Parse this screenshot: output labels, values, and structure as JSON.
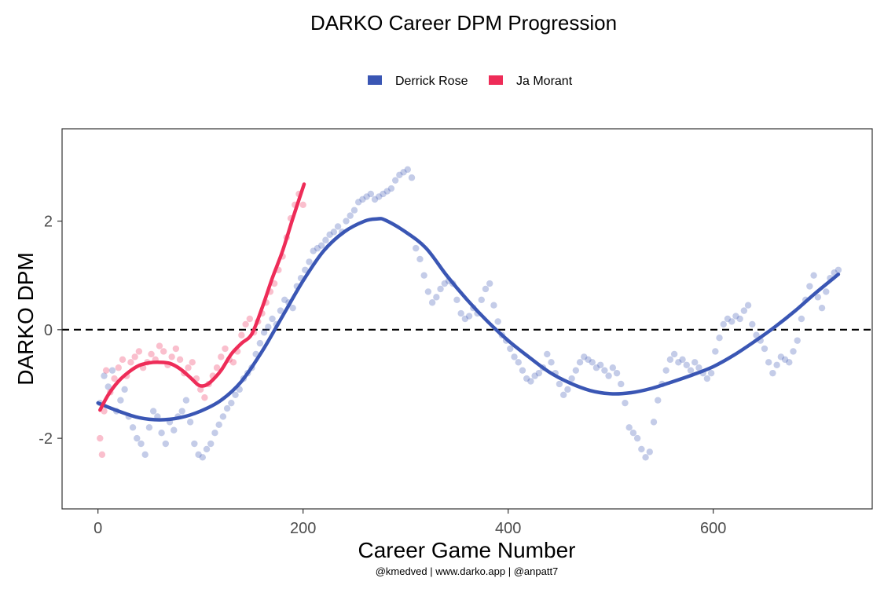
{
  "chart_data": {
    "type": "scatter",
    "title": "DARKO Career DPM Progression",
    "xlabel": "Career Game Number",
    "ylabel": "DARKO DPM",
    "caption": "@kmedved | www.darko.app | @anpatt7",
    "xlim": [
      -35,
      755
    ],
    "ylim": [
      -3.3,
      3.7
    ],
    "x_ticks": [
      0,
      200,
      400,
      600
    ],
    "x_tick_labels": [
      "0",
      "200",
      "400",
      "600"
    ],
    "y_ticks": [
      -2,
      0,
      2
    ],
    "y_tick_labels": [
      "-2",
      "0",
      "2"
    ],
    "reference_line": {
      "y": 0,
      "style": "dashed"
    },
    "legend": {
      "position": "top"
    },
    "grid": false,
    "series": [
      {
        "name": "Derrick Rose",
        "color": "#3a56b4",
        "points": [
          [
            2,
            -1.35
          ],
          [
            6,
            -0.85
          ],
          [
            10,
            -1.05
          ],
          [
            14,
            -0.75
          ],
          [
            18,
            -1.5
          ],
          [
            22,
            -1.3
          ],
          [
            26,
            -1.1
          ],
          [
            30,
            -1.6
          ],
          [
            34,
            -1.8
          ],
          [
            38,
            -2.0
          ],
          [
            42,
            -2.1
          ],
          [
            46,
            -2.3
          ],
          [
            50,
            -1.8
          ],
          [
            54,
            -1.5
          ],
          [
            58,
            -1.6
          ],
          [
            62,
            -1.9
          ],
          [
            66,
            -2.1
          ],
          [
            70,
            -1.7
          ],
          [
            74,
            -1.85
          ],
          [
            78,
            -1.6
          ],
          [
            82,
            -1.5
          ],
          [
            86,
            -1.3
          ],
          [
            90,
            -1.7
          ],
          [
            94,
            -2.1
          ],
          [
            98,
            -2.3
          ],
          [
            102,
            -2.35
          ],
          [
            106,
            -2.2
          ],
          [
            110,
            -2.1
          ],
          [
            114,
            -1.9
          ],
          [
            118,
            -1.75
          ],
          [
            122,
            -1.6
          ],
          [
            126,
            -1.45
          ],
          [
            130,
            -1.35
          ],
          [
            134,
            -1.2
          ],
          [
            138,
            -1.1
          ],
          [
            142,
            -0.9
          ],
          [
            146,
            -0.8
          ],
          [
            150,
            -0.7
          ],
          [
            154,
            -0.45
          ],
          [
            158,
            -0.25
          ],
          [
            162,
            -0.05
          ],
          [
            166,
            0.05
          ],
          [
            170,
            0.2
          ],
          [
            174,
            0.1
          ],
          [
            178,
            0.35
          ],
          [
            182,
            0.55
          ],
          [
            186,
            0.5
          ],
          [
            190,
            0.4
          ],
          [
            194,
            0.8
          ],
          [
            198,
            0.95
          ],
          [
            202,
            1.1
          ],
          [
            206,
            1.25
          ],
          [
            210,
            1.45
          ],
          [
            214,
            1.5
          ],
          [
            218,
            1.55
          ],
          [
            222,
            1.65
          ],
          [
            226,
            1.75
          ],
          [
            230,
            1.8
          ],
          [
            234,
            1.9
          ],
          [
            238,
            1.8
          ],
          [
            242,
            2.0
          ],
          [
            246,
            2.1
          ],
          [
            250,
            2.2
          ],
          [
            254,
            2.35
          ],
          [
            258,
            2.4
          ],
          [
            262,
            2.45
          ],
          [
            266,
            2.5
          ],
          [
            270,
            2.4
          ],
          [
            274,
            2.45
          ],
          [
            278,
            2.5
          ],
          [
            282,
            2.55
          ],
          [
            286,
            2.6
          ],
          [
            290,
            2.75
          ],
          [
            294,
            2.85
          ],
          [
            298,
            2.9
          ],
          [
            302,
            2.95
          ],
          [
            306,
            2.8
          ],
          [
            310,
            1.5
          ],
          [
            314,
            1.3
          ],
          [
            318,
            1.0
          ],
          [
            322,
            0.7
          ],
          [
            326,
            0.5
          ],
          [
            330,
            0.6
          ],
          [
            334,
            0.75
          ],
          [
            338,
            0.85
          ],
          [
            342,
            0.9
          ],
          [
            346,
            0.85
          ],
          [
            350,
            0.55
          ],
          [
            354,
            0.3
          ],
          [
            358,
            0.2
          ],
          [
            362,
            0.25
          ],
          [
            366,
            0.4
          ],
          [
            370,
            0.3
          ],
          [
            374,
            0.55
          ],
          [
            378,
            0.75
          ],
          [
            382,
            0.85
          ],
          [
            386,
            0.45
          ],
          [
            390,
            0.15
          ],
          [
            394,
            -0.1
          ],
          [
            398,
            -0.2
          ],
          [
            402,
            -0.35
          ],
          [
            406,
            -0.5
          ],
          [
            410,
            -0.6
          ],
          [
            414,
            -0.75
          ],
          [
            418,
            -0.9
          ],
          [
            422,
            -0.95
          ],
          [
            426,
            -0.85
          ],
          [
            430,
            -0.8
          ],
          [
            434,
            -0.7
          ],
          [
            438,
            -0.45
          ],
          [
            442,
            -0.6
          ],
          [
            446,
            -0.8
          ],
          [
            450,
            -1.0
          ],
          [
            454,
            -1.2
          ],
          [
            458,
            -1.1
          ],
          [
            462,
            -0.9
          ],
          [
            466,
            -0.75
          ],
          [
            470,
            -0.6
          ],
          [
            474,
            -0.5
          ],
          [
            478,
            -0.55
          ],
          [
            482,
            -0.6
          ],
          [
            486,
            -0.7
          ],
          [
            490,
            -0.65
          ],
          [
            494,
            -0.75
          ],
          [
            498,
            -0.85
          ],
          [
            502,
            -0.7
          ],
          [
            506,
            -0.8
          ],
          [
            510,
            -1.0
          ],
          [
            514,
            -1.35
          ],
          [
            518,
            -1.8
          ],
          [
            522,
            -1.9
          ],
          [
            526,
            -2.0
          ],
          [
            530,
            -2.2
          ],
          [
            534,
            -2.35
          ],
          [
            538,
            -2.25
          ],
          [
            542,
            -1.7
          ],
          [
            546,
            -1.3
          ],
          [
            550,
            -1.0
          ],
          [
            554,
            -0.75
          ],
          [
            558,
            -0.55
          ],
          [
            562,
            -0.45
          ],
          [
            566,
            -0.6
          ],
          [
            570,
            -0.55
          ],
          [
            574,
            -0.65
          ],
          [
            578,
            -0.75
          ],
          [
            582,
            -0.6
          ],
          [
            586,
            -0.7
          ],
          [
            590,
            -0.8
          ],
          [
            594,
            -0.9
          ],
          [
            598,
            -0.8
          ],
          [
            602,
            -0.4
          ],
          [
            606,
            -0.15
          ],
          [
            610,
            0.1
          ],
          [
            614,
            0.2
          ],
          [
            618,
            0.15
          ],
          [
            622,
            0.25
          ],
          [
            626,
            0.2
          ],
          [
            630,
            0.35
          ],
          [
            634,
            0.45
          ],
          [
            638,
            0.1
          ],
          [
            642,
            -0.1
          ],
          [
            646,
            -0.2
          ],
          [
            650,
            -0.35
          ],
          [
            654,
            -0.6
          ],
          [
            658,
            -0.8
          ],
          [
            662,
            -0.65
          ],
          [
            666,
            -0.5
          ],
          [
            670,
            -0.55
          ],
          [
            674,
            -0.6
          ],
          [
            678,
            -0.4
          ],
          [
            682,
            -0.2
          ],
          [
            686,
            0.2
          ],
          [
            690,
            0.55
          ],
          [
            694,
            0.8
          ],
          [
            698,
            1.0
          ],
          [
            702,
            0.6
          ],
          [
            706,
            0.4
          ],
          [
            710,
            0.7
          ],
          [
            714,
            0.95
          ],
          [
            718,
            1.05
          ],
          [
            722,
            1.1
          ]
        ],
        "smooth": [
          [
            0,
            -1.35
          ],
          [
            20,
            -1.5
          ],
          [
            40,
            -1.62
          ],
          [
            60,
            -1.66
          ],
          [
            80,
            -1.62
          ],
          [
            100,
            -1.5
          ],
          [
            120,
            -1.3
          ],
          [
            140,
            -0.95
          ],
          [
            160,
            -0.4
          ],
          [
            180,
            0.25
          ],
          [
            200,
            0.9
          ],
          [
            220,
            1.45
          ],
          [
            240,
            1.8
          ],
          [
            260,
            2.0
          ],
          [
            272,
            2.04
          ],
          [
            280,
            2.02
          ],
          [
            300,
            1.8
          ],
          [
            320,
            1.5
          ],
          [
            340,
            1.0
          ],
          [
            360,
            0.55
          ],
          [
            380,
            0.15
          ],
          [
            400,
            -0.2
          ],
          [
            420,
            -0.5
          ],
          [
            440,
            -0.78
          ],
          [
            460,
            -0.98
          ],
          [
            480,
            -1.12
          ],
          [
            500,
            -1.18
          ],
          [
            520,
            -1.16
          ],
          [
            540,
            -1.08
          ],
          [
            560,
            -0.96
          ],
          [
            580,
            -0.83
          ],
          [
            600,
            -0.68
          ],
          [
            620,
            -0.47
          ],
          [
            640,
            -0.22
          ],
          [
            660,
            0.05
          ],
          [
            680,
            0.35
          ],
          [
            700,
            0.68
          ],
          [
            722,
            1.02
          ]
        ]
      },
      {
        "name": "Ja Morant",
        "color": "#ee2c58",
        "points": [
          [
            2,
            -2.0
          ],
          [
            4,
            -2.3
          ],
          [
            6,
            -1.5
          ],
          [
            8,
            -0.75
          ],
          [
            12,
            -1.15
          ],
          [
            16,
            -0.9
          ],
          [
            20,
            -0.7
          ],
          [
            24,
            -0.55
          ],
          [
            28,
            -0.85
          ],
          [
            32,
            -0.6
          ],
          [
            36,
            -0.5
          ],
          [
            40,
            -0.4
          ],
          [
            44,
            -0.7
          ],
          [
            48,
            -0.6
          ],
          [
            52,
            -0.45
          ],
          [
            56,
            -0.55
          ],
          [
            60,
            -0.3
          ],
          [
            64,
            -0.4
          ],
          [
            68,
            -0.65
          ],
          [
            72,
            -0.5
          ],
          [
            76,
            -0.35
          ],
          [
            80,
            -0.55
          ],
          [
            84,
            -0.8
          ],
          [
            88,
            -0.7
          ],
          [
            92,
            -0.6
          ],
          [
            96,
            -0.9
          ],
          [
            100,
            -1.1
          ],
          [
            104,
            -1.25
          ],
          [
            108,
            -1.0
          ],
          [
            112,
            -0.85
          ],
          [
            116,
            -0.7
          ],
          [
            120,
            -0.5
          ],
          [
            124,
            -0.35
          ],
          [
            128,
            -0.55
          ],
          [
            132,
            -0.6
          ],
          [
            136,
            -0.4
          ],
          [
            140,
            -0.1
          ],
          [
            144,
            0.1
          ],
          [
            148,
            0.2
          ],
          [
            152,
            -0.05
          ],
          [
            156,
            0.15
          ],
          [
            160,
            0.3
          ],
          [
            164,
            0.5
          ],
          [
            168,
            0.7
          ],
          [
            172,
            0.85
          ],
          [
            176,
            1.1
          ],
          [
            180,
            1.35
          ],
          [
            184,
            1.7
          ],
          [
            188,
            2.05
          ],
          [
            192,
            2.3
          ],
          [
            196,
            2.5
          ],
          [
            200,
            2.3
          ]
        ],
        "smooth": [
          [
            2,
            -1.48
          ],
          [
            10,
            -1.2
          ],
          [
            20,
            -0.95
          ],
          [
            30,
            -0.78
          ],
          [
            40,
            -0.66
          ],
          [
            50,
            -0.61
          ],
          [
            60,
            -0.6
          ],
          [
            70,
            -0.62
          ],
          [
            80,
            -0.72
          ],
          [
            90,
            -0.88
          ],
          [
            98,
            -1.02
          ],
          [
            104,
            -1.03
          ],
          [
            110,
            -0.96
          ],
          [
            120,
            -0.75
          ],
          [
            130,
            -0.45
          ],
          [
            140,
            -0.25
          ],
          [
            150,
            -0.08
          ],
          [
            160,
            0.4
          ],
          [
            170,
            0.95
          ],
          [
            180,
            1.45
          ],
          [
            190,
            2.05
          ],
          [
            201,
            2.68
          ]
        ]
      }
    ]
  }
}
